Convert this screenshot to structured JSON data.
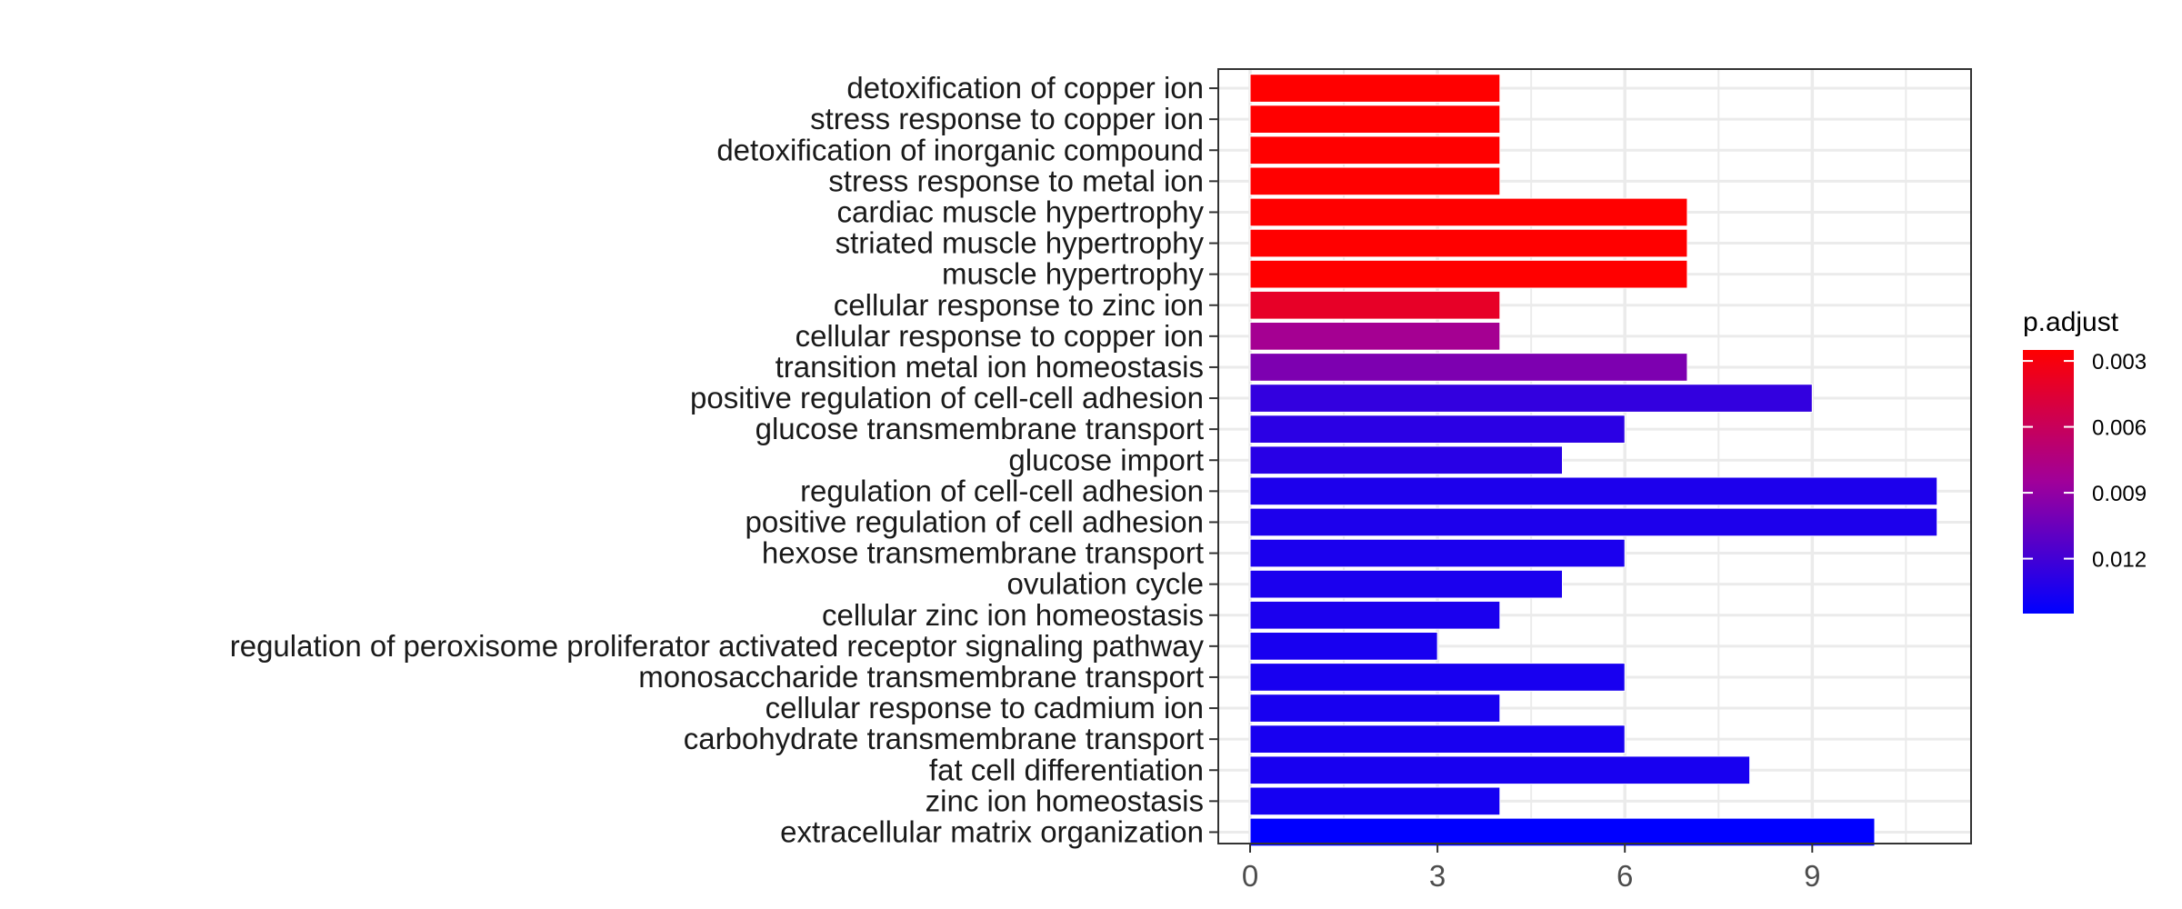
{
  "chart_data": {
    "type": "bar",
    "orientation": "horizontal",
    "title": "",
    "xlabel": "",
    "ylabel": "",
    "xlim": [
      0,
      11.5
    ],
    "xticks": [
      0,
      3,
      6,
      9
    ],
    "grid": true,
    "legend_position": "right",
    "categories": [
      "detoxification of copper ion",
      "stress response to copper ion",
      "detoxification of inorganic compound",
      "stress response to metal ion",
      "cardiac muscle hypertrophy",
      "striated muscle hypertrophy",
      "muscle hypertrophy",
      "cellular response to zinc ion",
      "cellular response to copper ion",
      "transition metal ion homeostasis",
      "positive regulation of cell-cell adhesion",
      "glucose transmembrane transport",
      "glucose import",
      "regulation of cell-cell adhesion",
      "positive regulation of cell adhesion",
      "hexose transmembrane transport",
      "ovulation cycle",
      "cellular zinc ion homeostasis",
      "regulation of peroxisome proliferator activated receptor signaling pathway",
      "monosaccharide transmembrane transport",
      "cellular response to cadmium ion",
      "carbohydrate transmembrane transport",
      "fat cell differentiation",
      "zinc ion homeostasis",
      "extracellular matrix organization"
    ],
    "values": [
      4,
      4,
      4,
      4,
      7,
      7,
      7,
      4,
      4,
      7,
      9,
      6,
      5,
      11,
      11,
      6,
      5,
      4,
      3,
      6,
      4,
      6,
      8,
      4,
      10
    ],
    "color_values": [
      0.001,
      0.001,
      0.001,
      0.0011,
      0.0021,
      0.0022,
      0.0022,
      0.004,
      0.0082,
      0.0098,
      0.0126,
      0.0129,
      0.013,
      0.0134,
      0.0134,
      0.0135,
      0.0135,
      0.0135,
      0.0136,
      0.0136,
      0.0136,
      0.0136,
      0.0136,
      0.0137,
      0.0145
    ],
    "colorbar": {
      "title": "p.adjust",
      "min": 0.0025,
      "max": 0.0145,
      "ticks": [
        0.003,
        0.006,
        0.009,
        0.012
      ],
      "tick_labels": [
        "0.003",
        "0.006",
        "0.009",
        "0.012"
      ],
      "low_color": "#ff0000",
      "high_color": "#0000ff"
    }
  },
  "colors": {
    "grid": "#ebebeb",
    "panel_border": "#333333",
    "bar_outline": "#ffffff"
  }
}
